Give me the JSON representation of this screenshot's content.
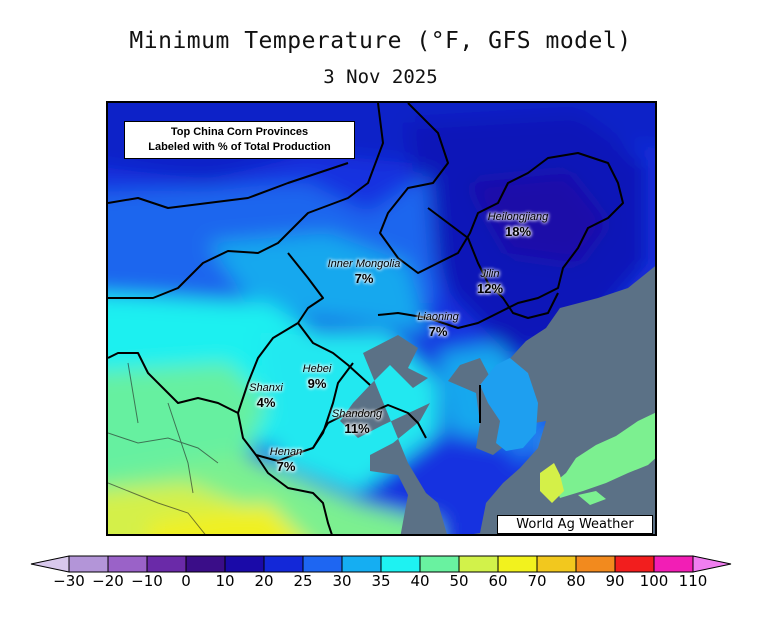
{
  "header": {
    "title": "Minimum Temperature (°F, GFS model)",
    "date": "3 Nov 2025"
  },
  "map": {
    "legend_box": {
      "line1": "Top China Corn Provinces",
      "line2": "Labeled with % of Total Production"
    },
    "provinces": [
      {
        "name": "Heilongjiang",
        "pct": "18%"
      },
      {
        "name": "Inner Mongolia",
        "pct": "7%"
      },
      {
        "name": "Jilin",
        "pct": "12%"
      },
      {
        "name": "Liaoning",
        "pct": "7%"
      },
      {
        "name": "Hebei",
        "pct": "9%"
      },
      {
        "name": "Shanxi",
        "pct": "4%"
      },
      {
        "name": "Shandong",
        "pct": "11%"
      },
      {
        "name": "Henan",
        "pct": "7%"
      }
    ],
    "credit": "World Ag Weather",
    "colors": {
      "ocean": "#5b7186",
      "border": "#000000"
    }
  },
  "colorbar": {
    "ticks": [
      "-30",
      "-20",
      "-10",
      "0",
      "10",
      "20",
      "25",
      "30",
      "35",
      "40",
      "50",
      "60",
      "70",
      "80",
      "90",
      "100",
      "110"
    ],
    "colors": [
      "#d8c8ec",
      "#b395d8",
      "#9a62c8",
      "#6a2aa8",
      "#3a0d88",
      "#1a0aa8",
      "#1328d8",
      "#1e66f2",
      "#15aef2",
      "#1ef2f2",
      "#69f2a0",
      "#d2f24a",
      "#f2f21e",
      "#f2c81e",
      "#f28a1e",
      "#f21e1e",
      "#f21eb5",
      "#f07ef0"
    ]
  }
}
